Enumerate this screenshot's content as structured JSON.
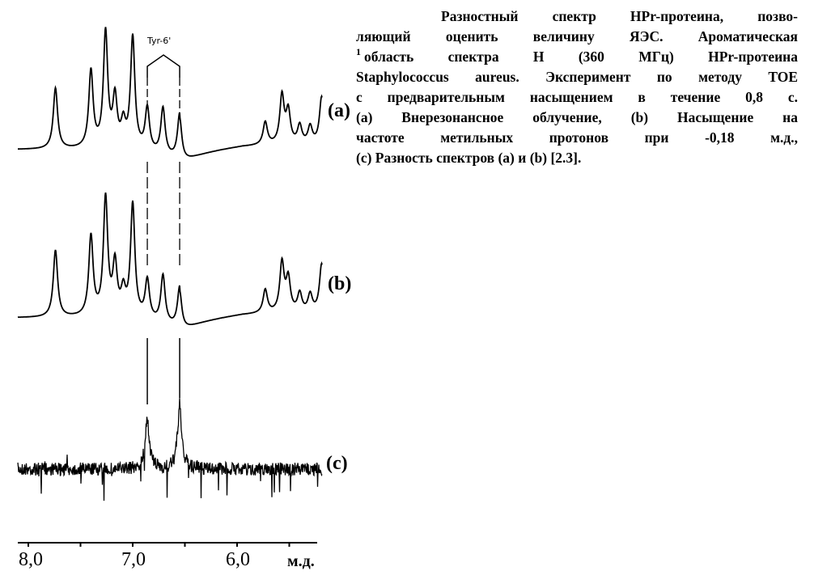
{
  "caption": {
    "lines": [
      "Разностный спектр HPr-протеина, позво-",
      "ляющий оценить величину ЯЭС. Ароматическая",
      "область спектра  H (360 МГц) HPr-протеина",
      "Staphylococcus aureus. Эксперимент по методу TOE",
      "с предварительным  насыщением  в течение 0,8 с.",
      "(a) Внерезонансное облучение, (b) Насыщение на",
      "частоте  метильных  протонов  при -0,18  м.д.,",
      "(c) Разность спектров (a) и (b) [2.3]."
    ],
    "superscript": "1"
  },
  "figure": {
    "annotation": "Tyr-6'",
    "annotation_ppm": [
      6.86,
      6.55
    ],
    "axis": {
      "unit": "м.д.",
      "reversed": true,
      "range_ppm": [
        8.0,
        5.2
      ],
      "minor_ticks": [
        8.0,
        7.5,
        7.0,
        6.5,
        6.0,
        5.5
      ],
      "tick_labels": [
        {
          "ppm": 8.0,
          "label": "8,0"
        },
        {
          "ppm": 7.0,
          "label": "7,0"
        },
        {
          "ppm": 6.0,
          "label": "6,0"
        }
      ]
    },
    "spectra": [
      {
        "label": "(a)",
        "peaks_ppm": [
          7.74,
          7.4,
          7.26,
          7.17,
          7.09,
          7.0,
          6.86,
          6.71,
          6.55,
          5.73,
          5.57,
          5.51,
          5.4,
          5.3,
          5.19
        ],
        "rel_intensity": [
          0.53,
          0.67,
          1.0,
          0.42,
          0.2,
          0.97,
          0.37,
          0.41,
          0.39,
          0.2,
          0.42,
          0.28,
          0.16,
          0.15,
          0.41
        ]
      },
      {
        "label": "(b)",
        "peaks_ppm": [
          7.74,
          7.4,
          7.26,
          7.17,
          7.09,
          7.0,
          6.86,
          6.71,
          6.55,
          5.73,
          5.57,
          5.51,
          5.4,
          5.3,
          5.19
        ],
        "rel_intensity": [
          0.57,
          0.68,
          1.0,
          0.43,
          0.2,
          0.96,
          0.33,
          0.41,
          0.34,
          0.2,
          0.42,
          0.28,
          0.16,
          0.15,
          0.41
        ]
      },
      {
        "label": "(c)",
        "peaks_ppm": [
          6.86,
          6.55
        ],
        "rel_intensity": [
          0.41,
          0.52
        ],
        "noisy": true
      }
    ]
  }
}
